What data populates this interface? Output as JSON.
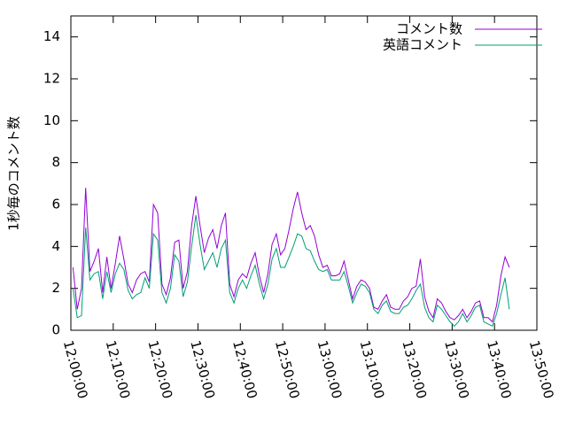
{
  "chart_data": {
    "type": "line",
    "ylabel": "1秒毎のコメント数",
    "x": [
      "12:00:30",
      "12:01:30",
      "12:02:30",
      "12:03:30",
      "12:04:30",
      "12:05:30",
      "12:06:30",
      "12:07:30",
      "12:08:30",
      "12:09:30",
      "12:10:30",
      "12:11:30",
      "12:12:30",
      "12:13:30",
      "12:14:30",
      "12:15:30",
      "12:16:30",
      "12:17:30",
      "12:18:30",
      "12:19:30",
      "12:20:30",
      "12:21:30",
      "12:22:30",
      "12:23:30",
      "12:24:30",
      "12:25:30",
      "12:26:30",
      "12:27:30",
      "12:28:30",
      "12:29:30",
      "12:30:30",
      "12:31:30",
      "12:32:30",
      "12:33:30",
      "12:34:30",
      "12:35:30",
      "12:36:30",
      "12:37:30",
      "12:38:30",
      "12:39:30",
      "12:40:30",
      "12:41:30",
      "12:42:30",
      "12:43:30",
      "12:44:30",
      "12:45:30",
      "12:46:30",
      "12:47:30",
      "12:48:30",
      "12:49:30",
      "12:50:30",
      "12:51:30",
      "12:52:30",
      "12:53:30",
      "12:54:30",
      "12:55:30",
      "12:56:30",
      "12:57:30",
      "12:58:30",
      "12:59:30",
      "13:00:30",
      "13:01:30",
      "13:02:30",
      "13:03:30",
      "13:04:30",
      "13:05:30",
      "13:06:30",
      "13:07:30",
      "13:08:30",
      "13:09:30",
      "13:10:30",
      "13:11:30",
      "13:12:30",
      "13:13:30",
      "13:14:30",
      "13:15:30",
      "13:16:30",
      "13:17:30",
      "13:18:30",
      "13:19:30",
      "13:20:30",
      "13:21:30",
      "13:22:30",
      "13:23:30",
      "13:24:30",
      "13:25:30",
      "13:26:30",
      "13:27:30",
      "13:28:30",
      "13:29:30",
      "13:30:30",
      "13:31:30",
      "13:32:30",
      "13:33:30",
      "13:34:30",
      "13:35:30",
      "13:36:30",
      "13:37:30",
      "13:38:30",
      "13:39:30",
      "13:40:30",
      "13:41:30",
      "13:42:30",
      "13:43:30"
    ],
    "series": [
      {
        "name": "コメント数",
        "color": "#9400d3",
        "values": [
          3.0,
          1.0,
          2.0,
          6.8,
          2.8,
          3.3,
          3.9,
          1.8,
          3.5,
          2.0,
          3.2,
          4.5,
          3.4,
          2.2,
          1.8,
          2.4,
          2.7,
          2.8,
          2.3,
          6.0,
          5.6,
          2.2,
          1.7,
          2.5,
          4.2,
          4.3,
          2.0,
          2.8,
          5.0,
          6.4,
          5.0,
          3.7,
          4.4,
          4.8,
          3.9,
          5.0,
          5.6,
          2.2,
          1.6,
          2.4,
          2.7,
          2.5,
          3.2,
          3.7,
          2.6,
          1.8,
          2.7,
          4.1,
          4.6,
          3.6,
          3.9,
          4.8,
          5.8,
          6.6,
          5.6,
          4.8,
          5.0,
          4.5,
          3.6,
          3.0,
          3.1,
          2.6,
          2.6,
          2.7,
          3.3,
          2.4,
          1.5,
          2.1,
          2.4,
          2.3,
          2.0,
          1.1,
          1.0,
          1.4,
          1.7,
          1.1,
          1.0,
          1.0,
          1.4,
          1.6,
          2.0,
          2.1,
          3.4,
          1.6,
          0.9,
          0.6,
          1.5,
          1.3,
          0.9,
          0.6,
          0.5,
          0.7,
          1.0,
          0.6,
          0.9,
          1.3,
          1.4,
          0.6,
          0.6,
          0.4,
          1.2,
          2.6,
          3.5,
          3.0
        ]
      },
      {
        "name": "英語コメント",
        "color": "#009e73",
        "values": [
          2.0,
          0.6,
          0.7,
          4.9,
          2.4,
          2.7,
          2.8,
          1.5,
          2.8,
          1.8,
          2.7,
          3.2,
          2.9,
          1.9,
          1.5,
          1.7,
          1.8,
          2.5,
          2.0,
          4.6,
          4.3,
          1.8,
          1.3,
          2.0,
          3.6,
          3.3,
          1.6,
          2.3,
          4.0,
          5.5,
          4.1,
          2.9,
          3.3,
          3.7,
          3.0,
          3.9,
          4.3,
          1.8,
          1.3,
          2.0,
          2.4,
          2.0,
          2.6,
          3.1,
          2.2,
          1.5,
          2.2,
          3.4,
          3.9,
          3.0,
          3.0,
          3.5,
          4.0,
          4.6,
          4.5,
          3.9,
          3.8,
          3.3,
          2.9,
          2.8,
          2.9,
          2.4,
          2.4,
          2.4,
          2.8,
          2.1,
          1.3,
          1.8,
          2.2,
          2.1,
          1.8,
          1.0,
          0.8,
          1.2,
          1.4,
          0.9,
          0.8,
          0.8,
          1.1,
          1.2,
          1.5,
          1.9,
          2.2,
          1.1,
          0.6,
          0.4,
          1.2,
          1.0,
          0.7,
          0.4,
          0.2,
          0.4,
          0.8,
          0.4,
          0.7,
          1.1,
          1.2,
          0.4,
          0.3,
          0.2,
          0.8,
          1.7,
          2.5,
          1.0
        ]
      }
    ],
    "xlim": [
      "12:00:00",
      "13:50:00"
    ],
    "xticks": [
      "12:00:00",
      "12:10:00",
      "12:20:00",
      "12:30:00",
      "12:40:00",
      "12:50:00",
      "13:00:00",
      "13:10:00",
      "13:20:00",
      "13:30:00",
      "13:40:00",
      "13:50:00"
    ],
    "ylim": [
      0,
      15
    ],
    "yticks": [
      0,
      2,
      4,
      6,
      8,
      10,
      12,
      14
    ],
    "legend": "top-right"
  }
}
